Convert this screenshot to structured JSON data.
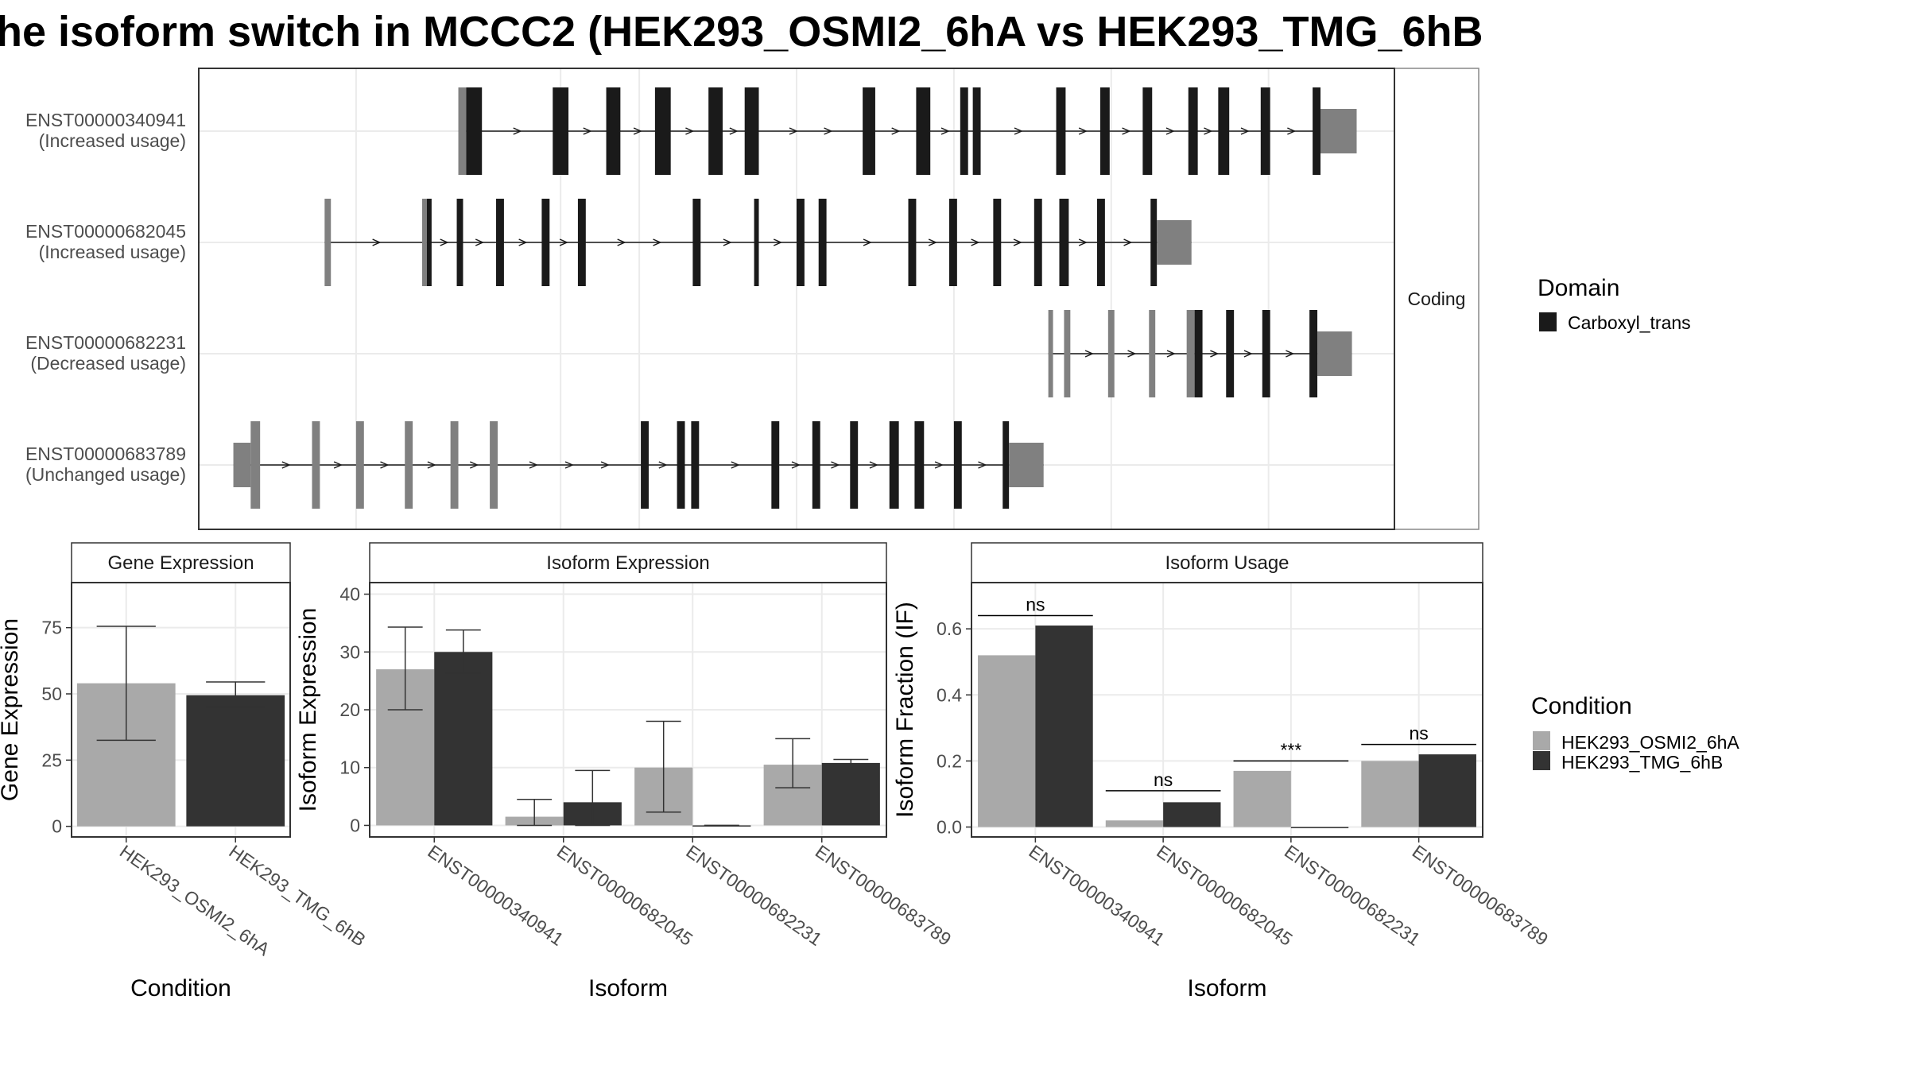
{
  "title": "he isoform switch in MCCC2 (HEK293_OSMI2_6hA vs HEK293_TMG_6hB",
  "colors": {
    "cond_a": "#a9a9a9",
    "cond_b": "#333333",
    "domain": "#1a1a1a",
    "utr": "#808080",
    "panel_border": "#333333",
    "grid": "#ebebeb",
    "strip": "#ffffff"
  },
  "structure": {
    "facet_label": "Coding",
    "transcripts": [
      {
        "id": "ENST00000340941",
        "usage": "(Increased usage)",
        "exons": [
          {
            "s": 148.5,
            "e": 149.0,
            "k": "nc"
          },
          {
            "s": 149.0,
            "e": 150.0,
            "k": "cds"
          },
          {
            "s": 154.5,
            "e": 155.5,
            "k": "cds"
          },
          {
            "s": 157.9,
            "e": 158.8,
            "k": "cds"
          },
          {
            "s": 161.0,
            "e": 162.0,
            "k": "cds"
          },
          {
            "s": 164.4,
            "e": 165.3,
            "k": "cds"
          },
          {
            "s": 166.7,
            "e": 167.6,
            "k": "cds"
          },
          {
            "s": 174.2,
            "e": 175.0,
            "k": "cds"
          },
          {
            "s": 177.6,
            "e": 178.5,
            "k": "cds"
          },
          {
            "s": 180.4,
            "e": 180.9,
            "k": "cds"
          },
          {
            "s": 181.2,
            "e": 181.7,
            "k": "cds"
          },
          {
            "s": 186.5,
            "e": 187.1,
            "k": "cds"
          },
          {
            "s": 189.3,
            "e": 189.9,
            "k": "cds"
          },
          {
            "s": 192.0,
            "e": 192.6,
            "k": "cds"
          },
          {
            "s": 194.9,
            "e": 195.5,
            "k": "cds"
          },
          {
            "s": 196.8,
            "e": 197.5,
            "k": "cds"
          },
          {
            "s": 199.5,
            "e": 200.1,
            "k": "cds"
          },
          {
            "s": 202.8,
            "e": 203.3,
            "k": "cds"
          },
          {
            "s": 203.3,
            "e": 205.6,
            "k": "nc"
          }
        ]
      },
      {
        "id": "ENST00000682045",
        "usage": "(Increased usage)",
        "exons": [
          {
            "s": 140.0,
            "e": 140.4,
            "k": "nc"
          },
          {
            "s": 146.2,
            "e": 146.5,
            "k": "nc"
          },
          {
            "s": 146.5,
            "e": 146.8,
            "k": "cds"
          },
          {
            "s": 148.4,
            "e": 148.8,
            "k": "cds"
          },
          {
            "s": 150.9,
            "e": 151.4,
            "k": "cds"
          },
          {
            "s": 153.8,
            "e": 154.3,
            "k": "cds"
          },
          {
            "s": 156.1,
            "e": 156.6,
            "k": "cds"
          },
          {
            "s": 163.4,
            "e": 163.9,
            "k": "cds"
          },
          {
            "s": 167.3,
            "e": 167.6,
            "k": "cds"
          },
          {
            "s": 170.0,
            "e": 170.5,
            "k": "cds"
          },
          {
            "s": 171.4,
            "e": 171.9,
            "k": "cds"
          },
          {
            "s": 177.1,
            "e": 177.6,
            "k": "cds"
          },
          {
            "s": 179.7,
            "e": 180.2,
            "k": "cds"
          },
          {
            "s": 182.5,
            "e": 183.0,
            "k": "cds"
          },
          {
            "s": 185.1,
            "e": 185.6,
            "k": "cds"
          },
          {
            "s": 186.7,
            "e": 187.3,
            "k": "cds"
          },
          {
            "s": 189.1,
            "e": 189.6,
            "k": "cds"
          },
          {
            "s": 192.5,
            "e": 192.9,
            "k": "cds"
          },
          {
            "s": 192.9,
            "e": 195.1,
            "k": "nc"
          }
        ]
      },
      {
        "id": "ENST00000682231",
        "usage": "(Decreased usage)",
        "exons": [
          {
            "s": 186.0,
            "e": 186.3,
            "k": "nc"
          },
          {
            "s": 187.0,
            "e": 187.4,
            "k": "nc"
          },
          {
            "s": 189.8,
            "e": 190.2,
            "k": "nc"
          },
          {
            "s": 192.4,
            "e": 192.8,
            "k": "nc"
          },
          {
            "s": 194.8,
            "e": 195.3,
            "k": "nc"
          },
          {
            "s": 194.8,
            "e": 195.3,
            "k": "nc"
          },
          {
            "s": 195.3,
            "e": 195.8,
            "k": "cds"
          },
          {
            "s": 197.3,
            "e": 197.8,
            "k": "cds"
          },
          {
            "s": 199.6,
            "e": 200.1,
            "k": "cds"
          },
          {
            "s": 202.6,
            "e": 203.1,
            "k": "cds"
          },
          {
            "s": 203.1,
            "e": 205.3,
            "k": "nc"
          }
        ]
      },
      {
        "id": "ENST00000683789",
        "usage": "(Unchanged usage)",
        "exons": [
          {
            "s": 134.2,
            "e": 135.3,
            "k": "nc"
          },
          {
            "s": 135.3,
            "e": 135.9,
            "k": "nc"
          },
          {
            "s": 139.2,
            "e": 139.7,
            "k": "nc"
          },
          {
            "s": 142.0,
            "e": 142.5,
            "k": "nc"
          },
          {
            "s": 145.1,
            "e": 145.6,
            "k": "nc"
          },
          {
            "s": 148.0,
            "e": 148.5,
            "k": "nc"
          },
          {
            "s": 150.5,
            "e": 151.0,
            "k": "nc"
          },
          {
            "s": 160.1,
            "e": 160.6,
            "k": "cds"
          },
          {
            "s": 162.4,
            "e": 162.9,
            "k": "cds"
          },
          {
            "s": 163.3,
            "e": 163.8,
            "k": "cds"
          },
          {
            "s": 168.4,
            "e": 168.9,
            "k": "cds"
          },
          {
            "s": 171.0,
            "e": 171.5,
            "k": "cds"
          },
          {
            "s": 173.4,
            "e": 173.9,
            "k": "cds"
          },
          {
            "s": 175.9,
            "e": 176.5,
            "k": "cds"
          },
          {
            "s": 177.5,
            "e": 178.1,
            "k": "cds"
          },
          {
            "s": 180.0,
            "e": 180.5,
            "k": "cds"
          },
          {
            "s": 183.1,
            "e": 183.5,
            "k": "cds"
          },
          {
            "s": 183.5,
            "e": 185.7,
            "k": "nc"
          }
        ]
      }
    ]
  },
  "legend_domain": {
    "title": "Domain",
    "items": [
      {
        "label": "Carboxyl_trans",
        "color": "#1a1a1a"
      }
    ]
  },
  "legend_condition": {
    "title": "Condition",
    "items": [
      {
        "label": "HEK293_OSMI2_6hA",
        "color": "#a9a9a9"
      },
      {
        "label": "HEK293_TMG_6hB",
        "color": "#333333"
      }
    ]
  },
  "chart_data": [
    {
      "type": "bar",
      "title": "Gene Expression",
      "xlabel": "Condition",
      "ylabel": "Gene Expression",
      "ylim": [
        -4,
        92
      ],
      "yticks": [
        0,
        25,
        50,
        75
      ],
      "categories": [
        "HEK293_OSMI2_6hA",
        "HEK293_TMG_6hB"
      ],
      "values": [
        54,
        49.5
      ],
      "errors": [
        [
          32.5,
          75.5
        ],
        [
          45,
          54.5
        ]
      ]
    },
    {
      "type": "bar",
      "title": "Isoform Expression",
      "xlabel": "Isoform",
      "ylabel": "Isoform Expression",
      "ylim": [
        -2,
        42
      ],
      "yticks": [
        0,
        10,
        20,
        30,
        40
      ],
      "categories": [
        "ENST00000340941",
        "ENST00000682045",
        "ENST00000682231",
        "ENST00000683789"
      ],
      "series": [
        {
          "name": "HEK293_OSMI2_6hA",
          "values": [
            27,
            1.5,
            10,
            10.5
          ],
          "errors": [
            [
              20,
              34.3
            ],
            [
              0,
              4.5
            ],
            [
              2.3,
              18
            ],
            [
              6.5,
              15
            ]
          ]
        },
        {
          "name": "HEK293_TMG_6hB",
          "values": [
            30,
            4,
            0,
            10.8
          ],
          "errors": [
            [
              26.3,
              33.8
            ],
            [
              0,
              9.5
            ],
            [
              0,
              0
            ],
            [
              10.2,
              11.4
            ]
          ]
        }
      ]
    },
    {
      "type": "bar",
      "title": "Isoform Usage",
      "xlabel": "Isoform",
      "ylabel": "Isoform Fraction (IF)",
      "ylim": [
        -0.03,
        0.74
      ],
      "yticks": [
        0.0,
        0.2,
        0.4,
        0.6
      ],
      "ytick_labels": [
        "0.0",
        "0.2",
        "0.4",
        "0.6"
      ],
      "categories": [
        "ENST00000340941",
        "ENST00000682045",
        "ENST00000682231",
        "ENST00000683789"
      ],
      "series": [
        {
          "name": "HEK293_OSMI2_6hA",
          "values": [
            0.52,
            0.02,
            0.17,
            0.2
          ]
        },
        {
          "name": "HEK293_TMG_6hB",
          "values": [
            0.61,
            0.075,
            0.0,
            0.22
          ]
        }
      ],
      "significance": [
        {
          "label": "ns",
          "y": 0.64
        },
        {
          "label": "ns",
          "y": 0.11
        },
        {
          "label": "***",
          "y": 0.2
        },
        {
          "label": "ns",
          "y": 0.25
        }
      ]
    }
  ]
}
